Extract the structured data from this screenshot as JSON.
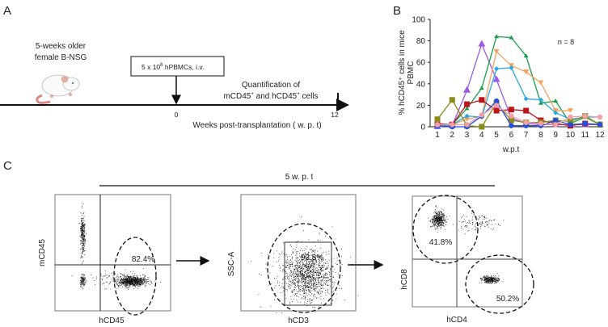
{
  "panel_a": {
    "label": "A",
    "mouse_line1": "5-weeks older",
    "mouse_line2": "female B-NSG",
    "injection_box": "5 x 10",
    "injection_exp": "6",
    "injection_rest": " hPBMCs, i.v.",
    "quant_line1": "Quantification of",
    "quant_line2_a": "mCD45",
    "quant_line2_b": " and hCD45",
    "quant_line2_c": " cells",
    "plus": "+",
    "tick_start": "0",
    "tick_end": "12",
    "axis_label": "Weeks post-transplantation ( w. p. t)"
  },
  "panel_b": {
    "label": "B",
    "annotation": "n = 8"
  },
  "chart_data": {
    "type": "line",
    "title": "",
    "xlabel": "w.p.t",
    "ylabel_line1": "% hCD45⁺ cells in mice",
    "ylabel_line2": "PBMC",
    "x": [
      1,
      2,
      3,
      4,
      5,
      6,
      7,
      8,
      9,
      10,
      11,
      12
    ],
    "x_tick_labels": [
      "1",
      "2",
      "3",
      "4",
      "5",
      "6",
      "7",
      "8",
      "9",
      "10",
      "11",
      "12"
    ],
    "ylim": [
      0,
      100
    ],
    "y_tick_labels": [
      "0",
      "20",
      "40",
      "60",
      "80",
      "100"
    ],
    "y_ticks": [
      0,
      20,
      40,
      60,
      80,
      100
    ],
    "grid": false,
    "series": [
      {
        "name": "mouse-purple",
        "color": "#9b59e8",
        "marker": "triangle",
        "values": [
          0,
          1,
          34,
          77,
          44,
          8,
          3,
          2,
          2,
          2,
          2,
          2
        ]
      },
      {
        "name": "mouse-green",
        "color": "#1a9e4a",
        "marker": "triangle-small",
        "values": [
          1,
          2,
          17,
          36,
          84,
          83,
          66,
          22,
          24,
          3,
          9,
          2
        ]
      },
      {
        "name": "mouse-orange",
        "color": "#f5a25d",
        "marker": "triangle-down",
        "values": [
          1,
          2,
          7,
          10,
          70,
          57,
          51,
          41,
          15,
          15,
          null,
          null
        ]
      },
      {
        "name": "mouse-lightblue",
        "color": "#29a8e0",
        "marker": "diamond",
        "values": [
          0,
          2,
          10,
          9,
          54,
          55,
          26,
          25,
          13,
          7,
          9,
          9
        ]
      },
      {
        "name": "mouse-red",
        "color": "#c0141b",
        "marker": "square",
        "values": [
          3,
          2,
          21,
          25,
          15,
          16,
          15,
          6,
          3,
          1,
          3,
          2
        ]
      },
      {
        "name": "mouse-olive",
        "color": "#8b8b1a",
        "marker": "square",
        "values": [
          7,
          25,
          1,
          0,
          22,
          6,
          4,
          4,
          6,
          5,
          10,
          2
        ]
      },
      {
        "name": "mouse-blue",
        "color": "#1f4fe0",
        "marker": "circle",
        "values": [
          1,
          0,
          0,
          10,
          24,
          1,
          1,
          1,
          6,
          2,
          3,
          2
        ]
      },
      {
        "name": "mouse-pink",
        "color": "#f2a0a8",
        "marker": "circle",
        "values": [
          2,
          2,
          2,
          11,
          20,
          10,
          4,
          3,
          2,
          9,
          10,
          9
        ]
      }
    ]
  },
  "panel_c": {
    "label": "C",
    "timepoint": "5 w. p. t",
    "plot1": {
      "xlabel": "hCD45",
      "ylabel": "mCD45",
      "gate_pct": "82.4%"
    },
    "plot2": {
      "xlabel": "hCD3",
      "ylabel": "SSC-A",
      "gate_pct": "93.8%"
    },
    "plot3": {
      "xlabel": "hCD4",
      "ylabel": "hCD8",
      "gate_pct_cd8": "41.8%",
      "gate_pct_cd4": "50.2%"
    }
  }
}
